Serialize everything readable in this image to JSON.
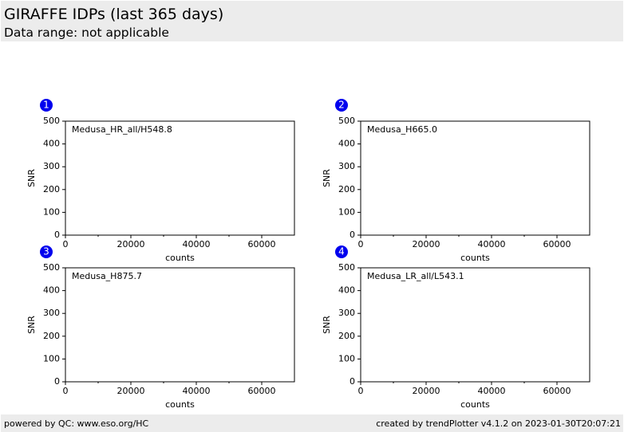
{
  "header": {
    "title": "GIRAFFE IDPs (last 365 days)",
    "subtitle": "Data range: not applicable"
  },
  "chart_data": [
    {
      "type": "scatter",
      "panel": "1",
      "annotation": "Medusa_HR_all/H548.8",
      "xlabel": "counts",
      "ylabel": "SNR",
      "xlim": [
        0,
        70000
      ],
      "xticks": [
        0,
        20000,
        40000,
        60000
      ],
      "xminorticks": [
        10000,
        30000,
        50000
      ],
      "ylim": [
        0,
        500
      ],
      "yticks": [
        0,
        100,
        200,
        300,
        400,
        500
      ]
    },
    {
      "type": "scatter",
      "panel": "2",
      "annotation": "Medusa_H665.0",
      "xlabel": "counts",
      "ylabel": "SNR",
      "xlim": [
        0,
        70000
      ],
      "xticks": [
        0,
        20000,
        40000,
        60000
      ],
      "xminorticks": [
        10000,
        30000,
        50000
      ],
      "ylim": [
        0,
        500
      ],
      "yticks": [
        0,
        100,
        200,
        300,
        400,
        500
      ]
    },
    {
      "type": "scatter",
      "panel": "3",
      "annotation": "Medusa_H875.7",
      "xlabel": "counts",
      "ylabel": "SNR",
      "xlim": [
        0,
        70000
      ],
      "xticks": [
        0,
        20000,
        40000,
        60000
      ],
      "xminorticks": [
        10000,
        30000,
        50000
      ],
      "ylim": [
        0,
        500
      ],
      "yticks": [
        0,
        100,
        200,
        300,
        400,
        500
      ]
    },
    {
      "type": "scatter",
      "panel": "4",
      "annotation": "Medusa_LR_all/L543.1",
      "xlabel": "counts",
      "ylabel": "SNR",
      "xlim": [
        0,
        70000
      ],
      "xticks": [
        0,
        20000,
        40000,
        60000
      ],
      "xminorticks": [
        10000,
        30000,
        50000
      ],
      "ylim": [
        0,
        500
      ],
      "yticks": [
        0,
        100,
        200,
        300,
        400,
        500
      ]
    }
  ],
  "footer": {
    "left": "powered by QC: www.eso.org/HC",
    "right": "created by trendPlotter v4.1.2 on 2023-01-30T20:07:21"
  }
}
